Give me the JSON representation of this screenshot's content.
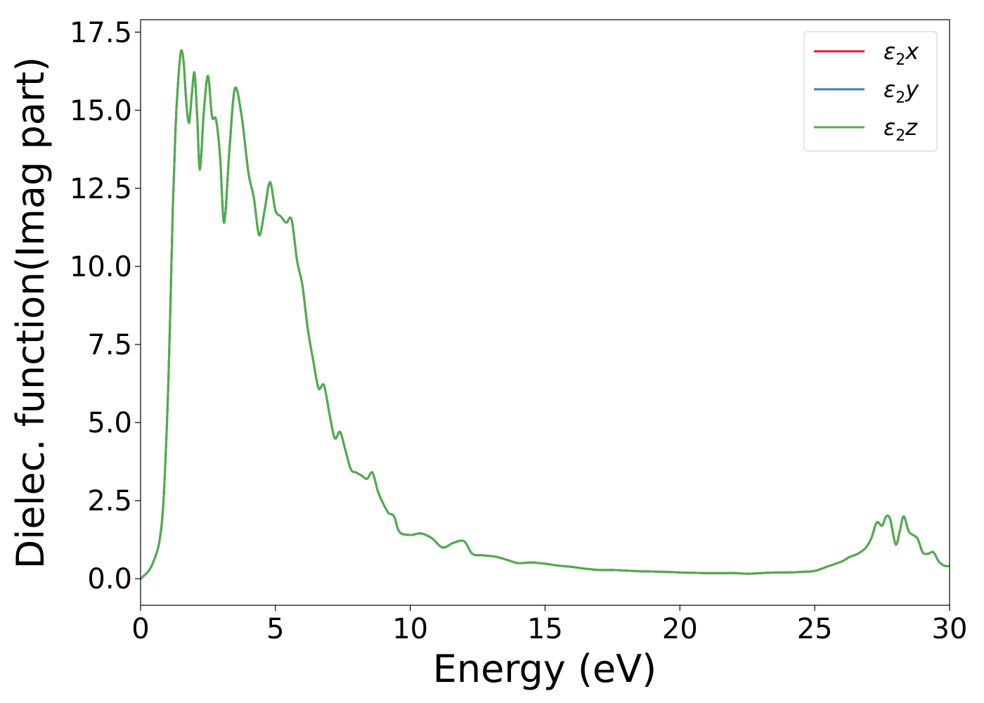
{
  "chart_data": {
    "type": "line",
    "title": "",
    "xlabel": "Energy (eV)",
    "ylabel": "Dielec. function(Imag part)",
    "xlim": [
      0,
      30
    ],
    "ylim": [
      -0.85,
      17.9
    ],
    "xticks": [
      0,
      5,
      10,
      15,
      20,
      25,
      30
    ],
    "xtick_labels": [
      "0",
      "5",
      "10",
      "15",
      "20",
      "25",
      "30"
    ],
    "yticks": [
      0.0,
      2.5,
      5.0,
      7.5,
      10.0,
      12.5,
      15.0,
      17.5
    ],
    "ytick_labels": [
      "0.0",
      "2.5",
      "5.0",
      "7.5",
      "10.0",
      "12.5",
      "15.0",
      "17.5"
    ],
    "grid": false,
    "legend_position": "top-right",
    "x": [
      0,
      0.3,
      0.5,
      0.7,
      0.85,
      1.0,
      1.1,
      1.2,
      1.3,
      1.4,
      1.5,
      1.6,
      1.7,
      1.8,
      1.9,
      2.0,
      2.1,
      2.2,
      2.35,
      2.5,
      2.65,
      2.8,
      2.95,
      3.1,
      3.3,
      3.5,
      3.75,
      4.0,
      4.2,
      4.4,
      4.6,
      4.8,
      5.0,
      5.2,
      5.4,
      5.6,
      5.8,
      6.0,
      6.2,
      6.4,
      6.6,
      6.8,
      7.0,
      7.2,
      7.4,
      7.6,
      7.8,
      8.0,
      8.2,
      8.4,
      8.6,
      8.8,
      9.0,
      9.2,
      9.4,
      9.6,
      10.0,
      10.4,
      10.8,
      11.2,
      11.6,
      12.0,
      12.3,
      12.7,
      13.2,
      13.6,
      14.0,
      14.5,
      15.0,
      15.5,
      16.0,
      16.5,
      17.0,
      17.5,
      18.0,
      18.5,
      19.0,
      19.5,
      20.0,
      20.5,
      21.0,
      21.5,
      22.0,
      22.5,
      23.0,
      23.5,
      24.0,
      24.5,
      25.0,
      25.5,
      26.0,
      26.3,
      26.6,
      26.9,
      27.1,
      27.3,
      27.5,
      27.65,
      27.8,
      28.0,
      28.15,
      28.3,
      28.5,
      28.8,
      29.0,
      29.2,
      29.4,
      29.6,
      29.8,
      30.0
    ],
    "series": [
      {
        "name": "ε₂x",
        "color": "#e41a1c",
        "values": [
          0.0,
          0.25,
          0.6,
          1.2,
          2.5,
          5.5,
          8.5,
          12.0,
          14.5,
          16.0,
          16.9,
          16.5,
          15.2,
          14.6,
          15.5,
          16.2,
          14.8,
          13.1,
          15.0,
          16.1,
          14.8,
          14.7,
          13.5,
          11.4,
          13.8,
          15.7,
          14.8,
          13.0,
          12.2,
          11.0,
          11.8,
          12.7,
          11.8,
          11.6,
          11.4,
          11.5,
          10.2,
          9.4,
          8.0,
          7.0,
          6.1,
          6.2,
          5.3,
          4.5,
          4.7,
          4.1,
          3.5,
          3.4,
          3.3,
          3.2,
          3.4,
          2.8,
          2.4,
          2.1,
          2.0,
          1.5,
          1.4,
          1.45,
          1.3,
          1.0,
          1.15,
          1.2,
          0.8,
          0.75,
          0.7,
          0.6,
          0.5,
          0.52,
          0.48,
          0.42,
          0.38,
          0.32,
          0.28,
          0.28,
          0.26,
          0.24,
          0.23,
          0.22,
          0.2,
          0.19,
          0.18,
          0.18,
          0.18,
          0.16,
          0.18,
          0.2,
          0.2,
          0.22,
          0.25,
          0.4,
          0.55,
          0.7,
          0.8,
          1.0,
          1.3,
          1.8,
          1.7,
          2.0,
          1.9,
          1.1,
          1.5,
          2.0,
          1.5,
          1.3,
          0.85,
          0.8,
          0.85,
          0.55,
          0.42,
          0.4
        ]
      },
      {
        "name": "ε₂y",
        "color": "#377eb8",
        "values": [
          0.0,
          0.25,
          0.6,
          1.2,
          2.5,
          5.5,
          8.5,
          12.0,
          14.5,
          16.0,
          16.9,
          16.5,
          15.2,
          14.6,
          15.5,
          16.2,
          14.8,
          13.1,
          15.0,
          16.1,
          14.8,
          14.7,
          13.5,
          11.4,
          13.8,
          15.7,
          14.8,
          13.0,
          12.2,
          11.0,
          11.8,
          12.7,
          11.8,
          11.6,
          11.4,
          11.5,
          10.2,
          9.4,
          8.0,
          7.0,
          6.1,
          6.2,
          5.3,
          4.5,
          4.7,
          4.1,
          3.5,
          3.4,
          3.3,
          3.2,
          3.4,
          2.8,
          2.4,
          2.1,
          2.0,
          1.5,
          1.4,
          1.45,
          1.3,
          1.0,
          1.15,
          1.2,
          0.8,
          0.75,
          0.7,
          0.6,
          0.5,
          0.52,
          0.48,
          0.42,
          0.38,
          0.32,
          0.28,
          0.28,
          0.26,
          0.24,
          0.23,
          0.22,
          0.2,
          0.19,
          0.18,
          0.18,
          0.18,
          0.16,
          0.18,
          0.2,
          0.2,
          0.22,
          0.25,
          0.4,
          0.55,
          0.7,
          0.8,
          1.0,
          1.3,
          1.8,
          1.7,
          2.0,
          1.9,
          1.1,
          1.5,
          2.0,
          1.5,
          1.3,
          0.85,
          0.8,
          0.85,
          0.55,
          0.42,
          0.4
        ]
      },
      {
        "name": "ε₂z",
        "color": "#4daf4a",
        "values": [
          0.0,
          0.25,
          0.6,
          1.2,
          2.5,
          5.5,
          8.5,
          12.0,
          14.5,
          16.0,
          16.9,
          16.5,
          15.2,
          14.6,
          15.5,
          16.2,
          14.8,
          13.1,
          15.0,
          16.1,
          14.8,
          14.7,
          13.5,
          11.4,
          13.8,
          15.7,
          14.8,
          13.0,
          12.2,
          11.0,
          11.8,
          12.7,
          11.8,
          11.6,
          11.4,
          11.5,
          10.2,
          9.4,
          8.0,
          7.0,
          6.1,
          6.2,
          5.3,
          4.5,
          4.7,
          4.1,
          3.5,
          3.4,
          3.3,
          3.2,
          3.4,
          2.8,
          2.4,
          2.1,
          2.0,
          1.5,
          1.4,
          1.45,
          1.3,
          1.0,
          1.15,
          1.2,
          0.8,
          0.75,
          0.7,
          0.6,
          0.5,
          0.52,
          0.48,
          0.42,
          0.38,
          0.32,
          0.28,
          0.28,
          0.26,
          0.24,
          0.23,
          0.22,
          0.2,
          0.19,
          0.18,
          0.18,
          0.18,
          0.16,
          0.18,
          0.2,
          0.2,
          0.22,
          0.25,
          0.4,
          0.55,
          0.7,
          0.8,
          1.0,
          1.3,
          1.8,
          1.7,
          2.0,
          1.9,
          1.1,
          1.5,
          2.0,
          1.5,
          1.3,
          0.85,
          0.8,
          0.85,
          0.55,
          0.42,
          0.4
        ]
      }
    ],
    "legend": {
      "entries": [
        {
          "base": "ε",
          "sub": "2",
          "axis": "x",
          "color": "#e41a1c"
        },
        {
          "base": "ε",
          "sub": "2",
          "axis": "y",
          "color": "#377eb8"
        },
        {
          "base": "ε",
          "sub": "2",
          "axis": "z",
          "color": "#4daf4a"
        }
      ]
    }
  }
}
